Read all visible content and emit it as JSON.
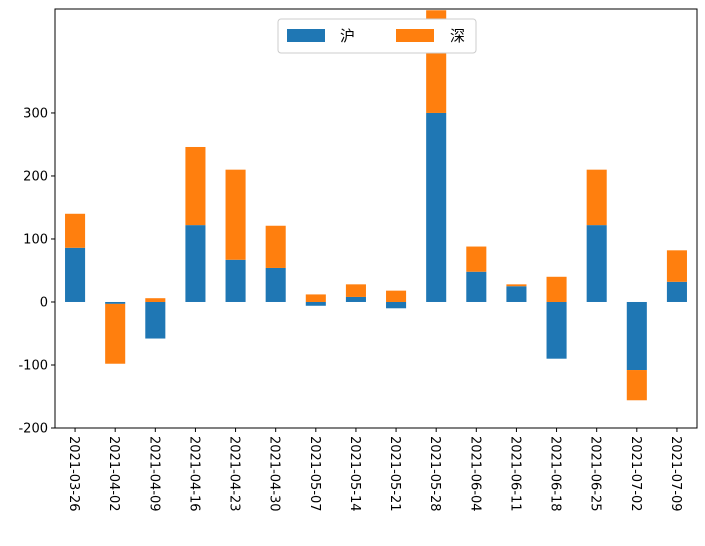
{
  "chart_data": {
    "type": "bar",
    "stacked": true,
    "categories": [
      "2021-03-26",
      "2021-04-02",
      "2021-04-09",
      "2021-04-16",
      "2021-04-23",
      "2021-04-30",
      "2021-05-07",
      "2021-05-14",
      "2021-05-21",
      "2021-05-28",
      "2021-06-04",
      "2021-06-11",
      "2021-06-18",
      "2021-06-25",
      "2021-07-02",
      "2021-07-09"
    ],
    "series": [
      {
        "name": "沪",
        "color": "#1f77b4",
        "values": [
          86,
          -3,
          -58,
          122,
          67,
          54,
          -6,
          8,
          -10,
          300,
          48,
          25,
          -90,
          122,
          -108,
          32
        ]
      },
      {
        "name": "深",
        "color": "#ff7f0e",
        "values": [
          54,
          -95,
          6,
          124,
          143,
          67,
          12,
          20,
          18,
          163,
          40,
          3,
          40,
          88,
          -48,
          50
        ]
      }
    ],
    "yticks": [
      -200,
      -100,
      0,
      100,
      200,
      300
    ],
    "ylim": [
      -200,
      465
    ],
    "legend": "top-center",
    "grid": false
  }
}
